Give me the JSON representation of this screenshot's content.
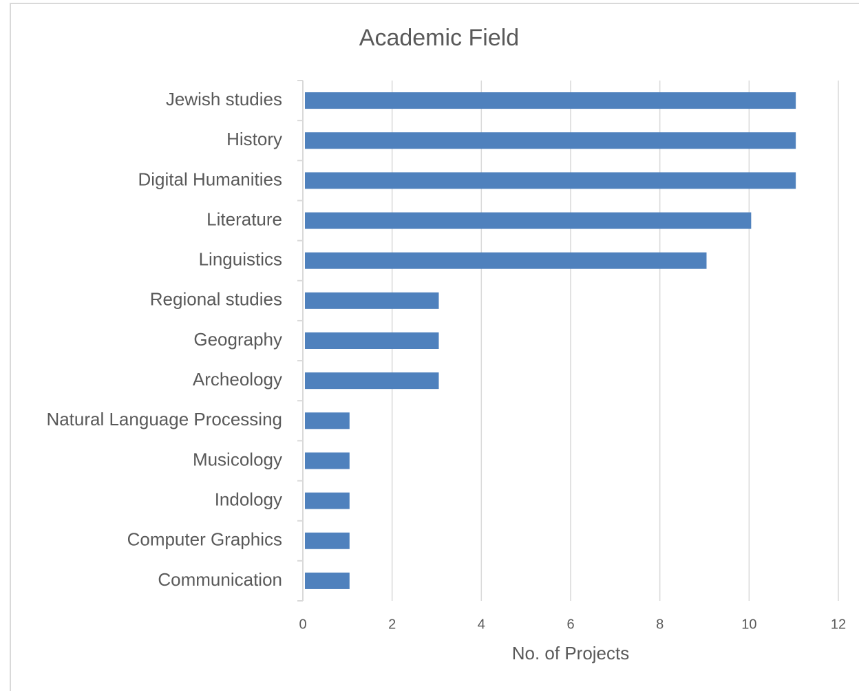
{
  "chart_data": {
    "type": "bar",
    "orientation": "horizontal",
    "title": "Academic Field",
    "x_label": "No. of Projects",
    "categories": [
      "Jewish studies",
      "History",
      "Digital Humanities",
      "Literature",
      "Linguistics",
      "Regional studies",
      "Geography",
      "Archeology",
      "Natural Language Processing",
      "Musicology",
      "Indology",
      "Computer Graphics",
      "Communication"
    ],
    "values": [
      11,
      11,
      11,
      10,
      9,
      3,
      3,
      3,
      1,
      1,
      1,
      1,
      1
    ],
    "color": "#4f81bd",
    "xlim": [
      0,
      12
    ],
    "xticks": [
      0,
      2,
      4,
      6,
      8,
      10,
      12
    ],
    "grid": true
  }
}
